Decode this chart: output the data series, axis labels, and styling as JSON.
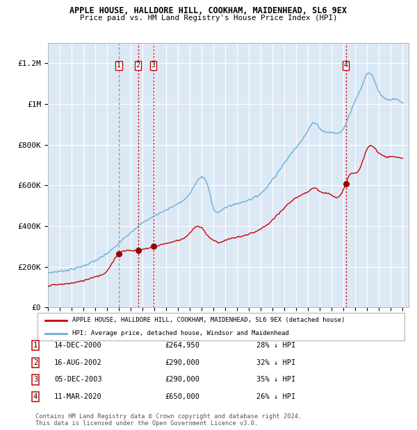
{
  "title": "APPLE HOUSE, HALLDORE HILL, COOKHAM, MAIDENHEAD, SL6 9EX",
  "subtitle": "Price paid vs. HM Land Registry's House Price Index (HPI)",
  "xlim": [
    1995.0,
    2025.5
  ],
  "ylim": [
    0,
    1300000
  ],
  "yticks": [
    0,
    200000,
    400000,
    600000,
    800000,
    1000000,
    1200000
  ],
  "ytick_labels": [
    "£0",
    "£200K",
    "£400K",
    "£600K",
    "£800K",
    "£1M",
    "£1.2M"
  ],
  "plot_bg": "#dce9f5",
  "grid_color": "#ffffff",
  "sale_color": "#cc0000",
  "hpi_color": "#6aaed6",
  "transactions": [
    {
      "num": 1,
      "year": 2001.0,
      "price": 264950,
      "label": "1"
    },
    {
      "num": 2,
      "year": 2002.62,
      "price": 290000,
      "label": "2"
    },
    {
      "num": 3,
      "year": 2003.92,
      "price": 290000,
      "label": "3"
    },
    {
      "num": 4,
      "year": 2020.19,
      "price": 650000,
      "label": "4"
    }
  ],
  "legend_entries": [
    "APPLE HOUSE, HALLDORE HILL, COOKHAM, MAIDENHEAD, SL6 9EX (detached house)",
    "HPI: Average price, detached house, Windsor and Maidenhead"
  ],
  "table_rows": [
    {
      "num": "1",
      "date": "14-DEC-2000",
      "price": "£264,950",
      "note": "28% ↓ HPI"
    },
    {
      "num": "2",
      "date": "16-AUG-2002",
      "price": "£290,000",
      "note": "32% ↓ HPI"
    },
    {
      "num": "3",
      "date": "05-DEC-2003",
      "price": "£290,000",
      "note": "35% ↓ HPI"
    },
    {
      "num": "4",
      "date": "11-MAR-2020",
      "price": "£650,000",
      "note": "26% ↓ HPI"
    }
  ],
  "footer": "Contains HM Land Registry data © Crown copyright and database right 2024.\nThis data is licensed under the Open Government Licence v3.0.",
  "hpi_knots_x": [
    1995.0,
    1996.0,
    1997.0,
    1998.0,
    1999.0,
    2000.0,
    2001.0,
    2002.0,
    2003.0,
    2004.0,
    2005.0,
    2006.0,
    2007.0,
    2007.5,
    2008.0,
    2008.5,
    2009.0,
    2009.5,
    2010.0,
    2011.0,
    2012.0,
    2013.0,
    2014.0,
    2015.0,
    2016.0,
    2017.0,
    2017.5,
    2018.0,
    2019.0,
    2020.0,
    2020.5,
    2021.0,
    2021.5,
    2022.0,
    2022.5,
    2023.0,
    2024.0,
    2025.0
  ],
  "hpi_knots_y": [
    170000,
    178000,
    188000,
    205000,
    230000,
    265000,
    315000,
    370000,
    415000,
    450000,
    480000,
    510000,
    560000,
    610000,
    640000,
    600000,
    490000,
    470000,
    490000,
    510000,
    530000,
    560000,
    630000,
    710000,
    790000,
    870000,
    910000,
    880000,
    860000,
    880000,
    950000,
    1020000,
    1080000,
    1150000,
    1130000,
    1060000,
    1020000,
    1000000
  ],
  "sale_knots_x": [
    1995.0,
    1996.0,
    1997.0,
    1998.0,
    1999.0,
    2000.0,
    2001.0,
    2002.0,
    2003.0,
    2004.0,
    2005.0,
    2006.0,
    2007.0,
    2007.5,
    2008.0,
    2008.5,
    2009.0,
    2009.5,
    2010.0,
    2011.0,
    2012.0,
    2013.0,
    2014.0,
    2015.0,
    2016.0,
    2017.0,
    2017.5,
    2018.0,
    2019.0,
    2019.5,
    2020.0,
    2020.5,
    2021.0,
    2021.5,
    2022.0,
    2022.5,
    2023.0,
    2024.0,
    2025.0
  ],
  "sale_knots_y": [
    108000,
    113000,
    120000,
    132000,
    152000,
    180000,
    265000,
    280000,
    285000,
    300000,
    315000,
    330000,
    365000,
    395000,
    390000,
    355000,
    330000,
    320000,
    330000,
    345000,
    360000,
    385000,
    430000,
    490000,
    540000,
    570000,
    590000,
    570000,
    555000,
    540000,
    580000,
    650000,
    660000,
    700000,
    780000,
    790000,
    760000,
    740000,
    730000
  ]
}
